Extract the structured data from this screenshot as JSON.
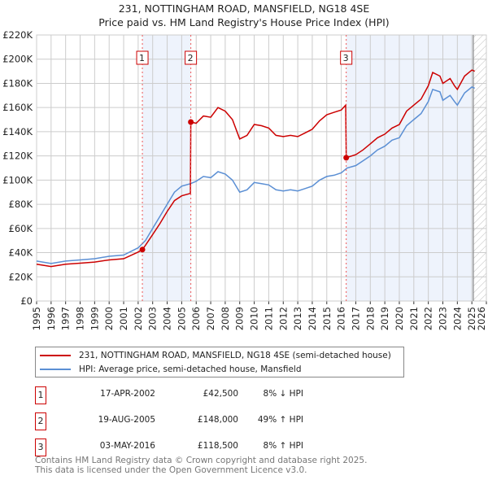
{
  "title_line1": "231, NOTTINGHAM ROAD, MANSFIELD, NG18 4SE",
  "title_line2": "Price paid vs. HM Land Registry's House Price Index (HPI)",
  "legend": {
    "property": "231, NOTTINGHAM ROAD, MANSFIELD, NG18 4SE (semi-detached house)",
    "hpi": "HPI: Average price, semi-detached house, Mansfield"
  },
  "colors": {
    "property": "#cc0000",
    "hpi": "#5b8fd4",
    "shade": "#eef3fc"
  },
  "sales": [
    {
      "n": "1",
      "date": "17-APR-2002",
      "price": "£42,500",
      "hpi": "8% ↓ HPI"
    },
    {
      "n": "2",
      "date": "19-AUG-2005",
      "price": "£148,000",
      "hpi": "49% ↑ HPI"
    },
    {
      "n": "3",
      "date": "03-MAY-2016",
      "price": "£118,500",
      "hpi": "8% ↑ HPI"
    }
  ],
  "footer_line1": "Contains HM Land Registry data © Crown copyright and database right 2025.",
  "footer_line2": "This data is licensed under the Open Government Licence v3.0.",
  "chart_data": {
    "type": "line",
    "xlim": [
      1995,
      2026
    ],
    "ylim": [
      0,
      220000
    ],
    "xticks": [
      "1995",
      "1996",
      "1997",
      "1998",
      "1999",
      "2000",
      "2001",
      "2002",
      "2003",
      "2004",
      "2005",
      "2006",
      "2007",
      "2008",
      "2009",
      "2010",
      "2011",
      "2012",
      "2013",
      "2014",
      "2015",
      "2016",
      "2017",
      "2018",
      "2019",
      "2020",
      "2021",
      "2022",
      "2023",
      "2024",
      "2025",
      "2026"
    ],
    "yticks": [
      {
        "v": 0,
        "label": "£0"
      },
      {
        "v": 20000,
        "label": "£20K"
      },
      {
        "v": 40000,
        "label": "£40K"
      },
      {
        "v": 60000,
        "label": "£60K"
      },
      {
        "v": 80000,
        "label": "£80K"
      },
      {
        "v": 100000,
        "label": "£100K"
      },
      {
        "v": 120000,
        "label": "£120K"
      },
      {
        "v": 140000,
        "label": "£140K"
      },
      {
        "v": 160000,
        "label": "£160K"
      },
      {
        "v": 180000,
        "label": "£180K"
      },
      {
        "v": 200000,
        "label": "£200K"
      },
      {
        "v": 220000,
        "label": "£220K"
      }
    ],
    "sale_points": [
      {
        "x": 2002.29,
        "y": 42500,
        "label": "1"
      },
      {
        "x": 2005.63,
        "y": 148000,
        "label": "2"
      },
      {
        "x": 2016.34,
        "y": 118500,
        "label": "3"
      }
    ],
    "projection_start": 2025.1,
    "series": [
      {
        "name": "property",
        "x": [
          1995,
          1996,
          1997,
          1998,
          1999,
          2000,
          2001,
          2002,
          2002.29,
          2002.5,
          2003,
          2003.5,
          2004,
          2004.5,
          2005,
          2005.6,
          2005.63,
          2006,
          2006.5,
          2007,
          2007.5,
          2008,
          2008.5,
          2009,
          2009.5,
          2010,
          2010.5,
          2011,
          2011.5,
          2012,
          2012.5,
          2013,
          2013.5,
          2014,
          2014.5,
          2015,
          2015.5,
          2016,
          2016.3,
          2016.34,
          2017,
          2017.5,
          2018,
          2018.5,
          2019,
          2019.5,
          2020,
          2020.5,
          2021,
          2021.5,
          2022,
          2022.3,
          2022.8,
          2023,
          2023.5,
          2023.8,
          2024,
          2024.5,
          2025,
          2025.2
        ],
        "y": [
          30500,
          28500,
          30500,
          31300,
          32200,
          34000,
          35000,
          40500,
          42500,
          46000,
          55000,
          64000,
          74000,
          83000,
          87000,
          89000,
          148000,
          147000,
          153000,
          152000,
          160000,
          157000,
          150000,
          134000,
          137000,
          146000,
          145000,
          143000,
          137000,
          136000,
          137000,
          136000,
          139000,
          142000,
          149000,
          154000,
          156000,
          158000,
          162000,
          118500,
          121000,
          125000,
          130000,
          135000,
          138000,
          143000,
          146000,
          157000,
          162000,
          167000,
          178000,
          189000,
          186000,
          180000,
          184000,
          178000,
          175000,
          186000,
          191000,
          190000
        ]
      },
      {
        "name": "hpi",
        "x": [
          1995,
          1996,
          1997,
          1998,
          1999,
          2000,
          2001,
          2002,
          2002.5,
          2003,
          2003.5,
          2004,
          2004.5,
          2005,
          2005.6,
          2006,
          2006.5,
          2007,
          2007.5,
          2008,
          2008.5,
          2009,
          2009.5,
          2010,
          2010.5,
          2011,
          2011.5,
          2012,
          2012.5,
          2013,
          2013.5,
          2014,
          2014.5,
          2015,
          2015.5,
          2016,
          2016.4,
          2017,
          2017.5,
          2018,
          2018.5,
          2019,
          2019.5,
          2020,
          2020.5,
          2021,
          2021.5,
          2022,
          2022.3,
          2022.8,
          2023,
          2023.5,
          2023.8,
          2024,
          2024.5,
          2025,
          2025.2
        ],
        "y": [
          33000,
          31000,
          33000,
          34000,
          35000,
          37000,
          38000,
          44000,
          50000,
          60000,
          70000,
          80000,
          90000,
          95000,
          97000,
          99000,
          103000,
          102000,
          107000,
          105000,
          100000,
          90000,
          92000,
          98000,
          97000,
          96000,
          92000,
          91000,
          92000,
          91000,
          93000,
          95000,
          100000,
          103000,
          104000,
          106000,
          110000,
          112000,
          116000,
          120000,
          125000,
          128000,
          133000,
          135000,
          145000,
          150000,
          155000,
          165000,
          175000,
          173000,
          166000,
          170000,
          165000,
          162000,
          172000,
          177000,
          176000
        ]
      }
    ]
  }
}
